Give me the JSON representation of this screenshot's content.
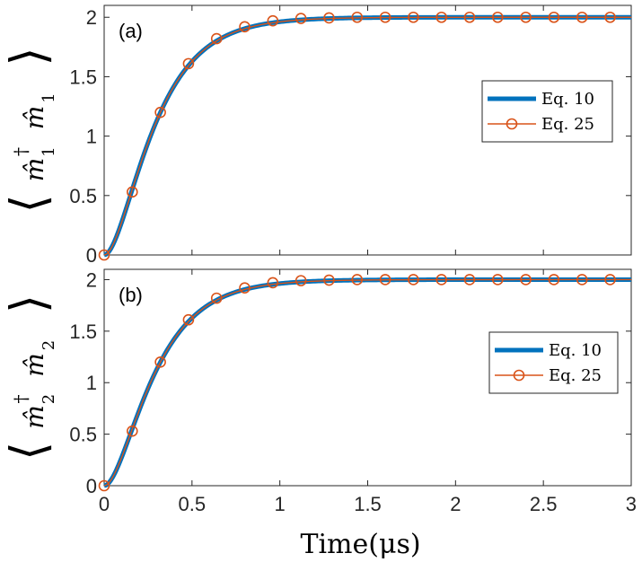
{
  "chart_data": [
    {
      "type": "line",
      "panel_label": "(a)",
      "ylabel": "⟨m̂1†m̂1⟩",
      "ylabel_main": "m̂",
      "ylabel_dagger": "†",
      "ylabel_sub": "1",
      "xlabel": "",
      "xlim": [
        0,
        3
      ],
      "ylim": [
        0,
        2.1
      ],
      "x_ticks": [
        "0",
        "0.5",
        "1",
        "1.5",
        "2",
        "2.5",
        "3"
      ],
      "y_ticks": [
        "0",
        "0.5",
        "1",
        "1.5",
        "2"
      ],
      "legend_position": "right-middle",
      "series": [
        {
          "name": "Eq. 10",
          "color": "#0072BD",
          "style": "thick-line",
          "function": "2*(1-exp(-t/0.22))^2 approx"
        },
        {
          "name": "Eq. 25",
          "color": "#D95319",
          "style": "line-circle-markers",
          "x": [
            0,
            0.16,
            0.32,
            0.48,
            0.64,
            0.8,
            0.96,
            1.12,
            1.28,
            1.44,
            1.6,
            1.76,
            1.92,
            2.08,
            2.24,
            2.4,
            2.56,
            2.72,
            2.88
          ],
          "y": [
            0,
            0.53,
            1.2,
            1.61,
            1.82,
            1.92,
            1.97,
            1.99,
            1.995,
            2.0,
            2.0,
            2.0,
            2.0,
            2.0,
            2.0,
            2.0,
            2.0,
            2.0,
            2.0
          ]
        }
      ]
    },
    {
      "type": "line",
      "panel_label": "(b)",
      "ylabel": "⟨m̂2†m̂2⟩",
      "ylabel_main": "m̂",
      "ylabel_dagger": "†",
      "ylabel_sub": "2",
      "xlabel": "Time(μs)",
      "xlim": [
        0,
        3
      ],
      "ylim": [
        0,
        2.1
      ],
      "x_ticks": [
        "0",
        "0.5",
        "1",
        "1.5",
        "2",
        "2.5",
        "3"
      ],
      "y_ticks": [
        "0",
        "0.5",
        "1",
        "1.5",
        "2"
      ],
      "legend_position": "right-middle",
      "series": [
        {
          "name": "Eq. 10",
          "color": "#0072BD",
          "style": "thick-line",
          "function": "2*(1-exp(-t/0.22))^2 approx"
        },
        {
          "name": "Eq. 25",
          "color": "#D95319",
          "style": "line-circle-markers",
          "x": [
            0,
            0.16,
            0.32,
            0.48,
            0.64,
            0.8,
            0.96,
            1.12,
            1.28,
            1.44,
            1.6,
            1.76,
            1.92,
            2.08,
            2.24,
            2.4,
            2.56,
            2.72,
            2.88
          ],
          "y": [
            0,
            0.53,
            1.2,
            1.61,
            1.82,
            1.92,
            1.97,
            1.99,
            1.995,
            2.0,
            2.0,
            2.0,
            2.0,
            2.0,
            2.0,
            2.0,
            2.0,
            2.0,
            2.0
          ]
        }
      ]
    }
  ]
}
